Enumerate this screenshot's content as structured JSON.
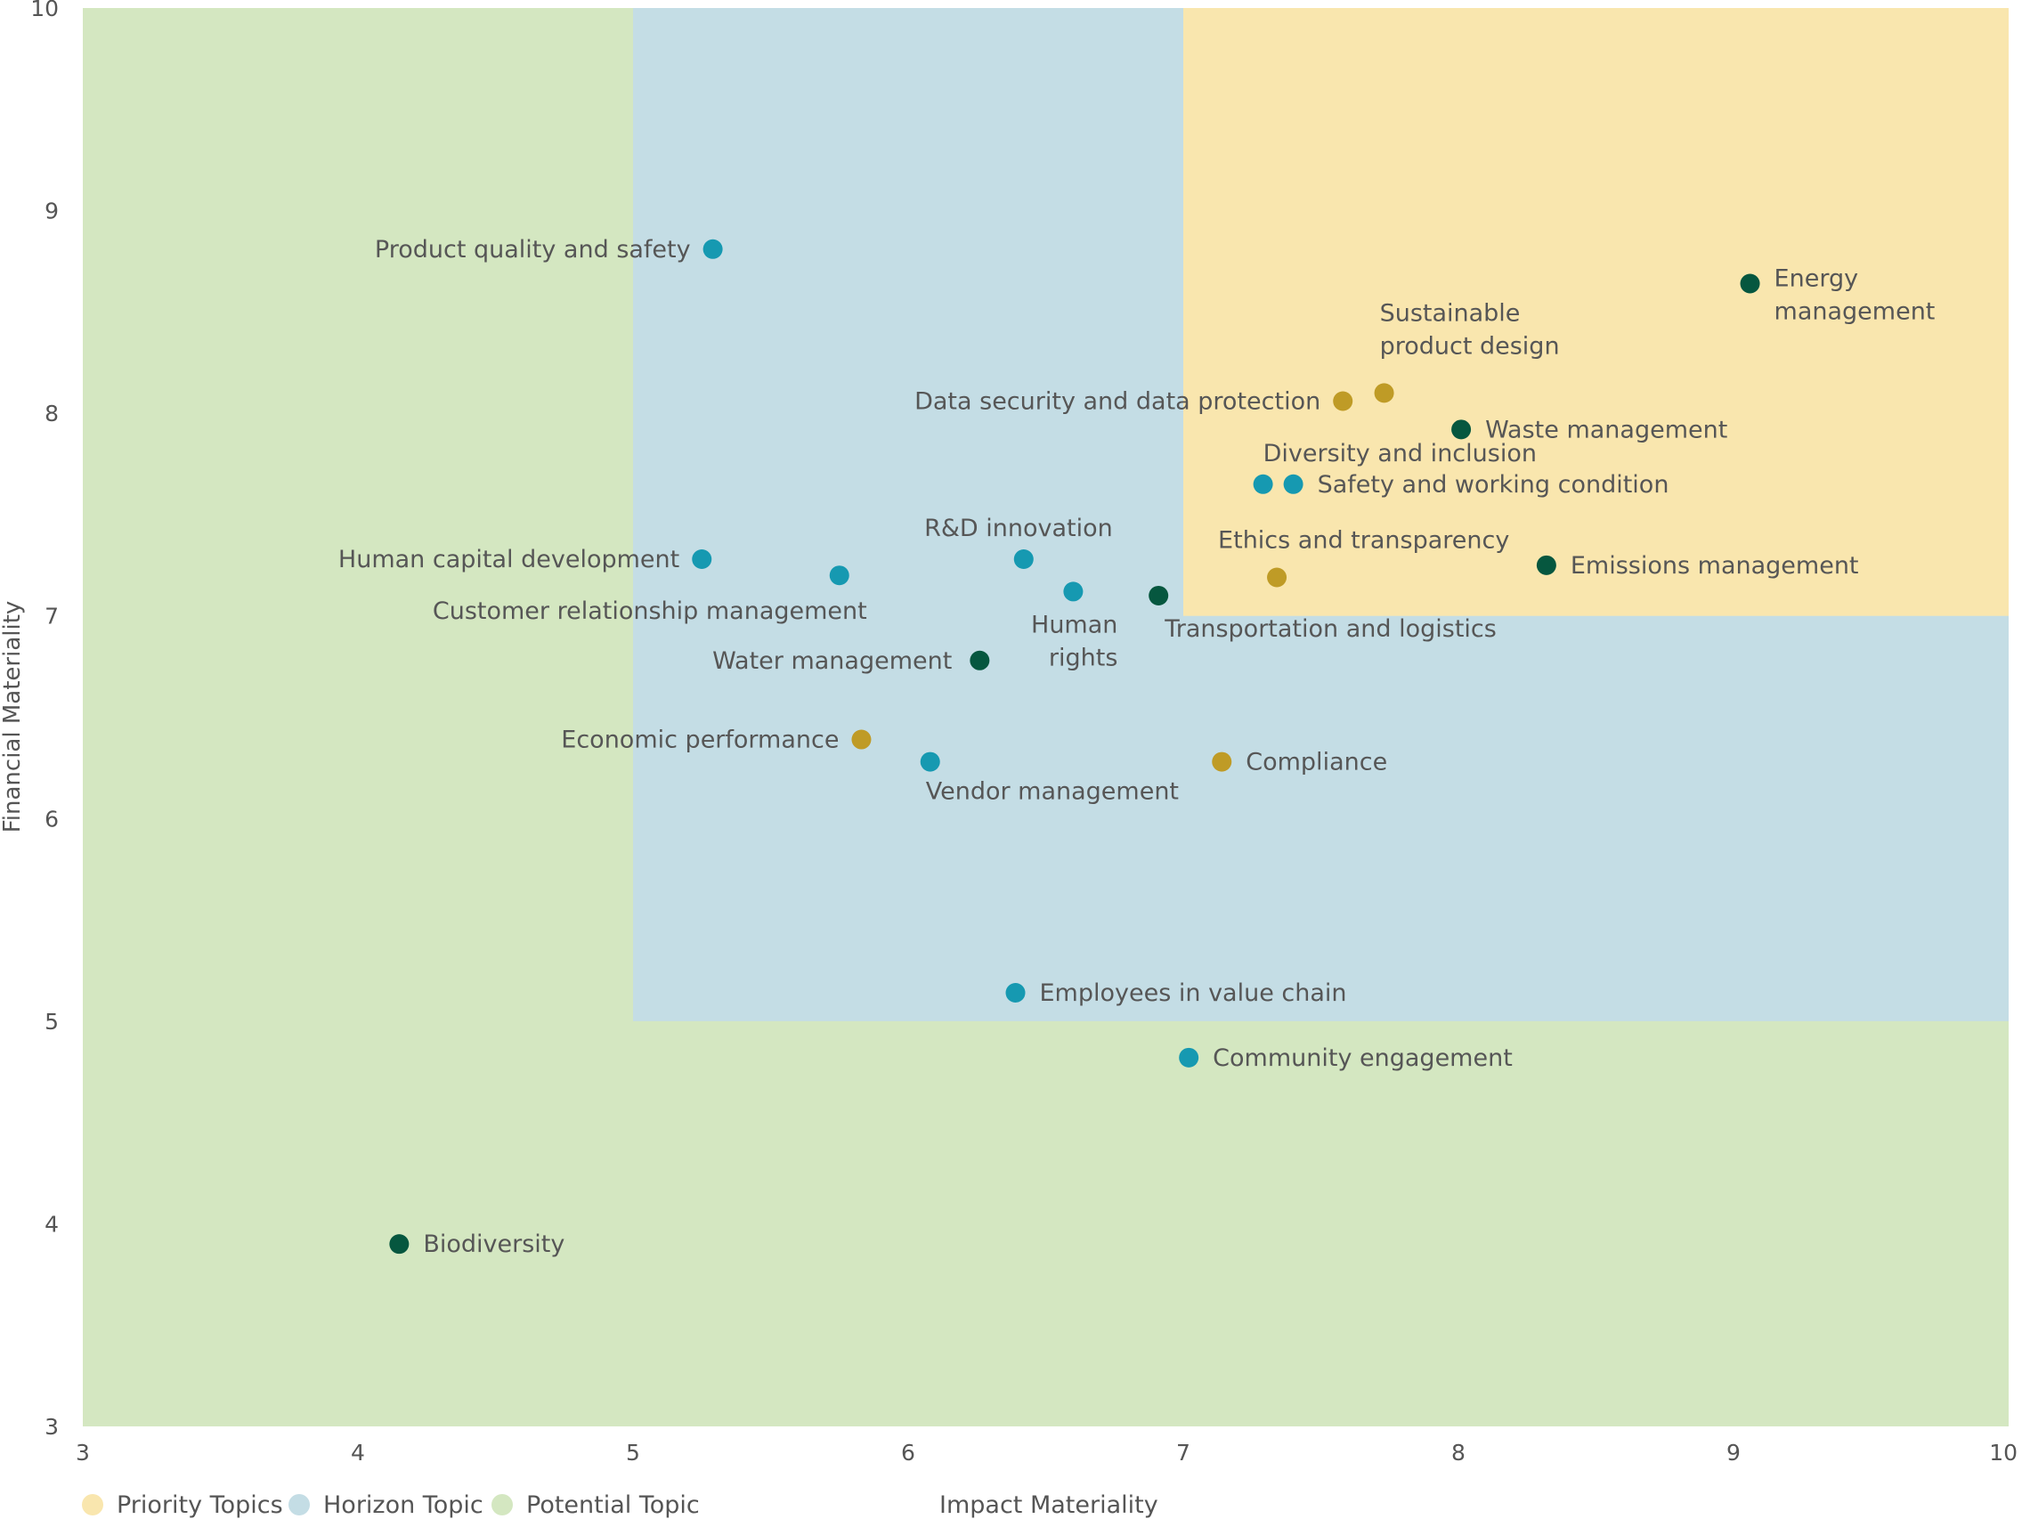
{
  "chart_data": {
    "type": "scatter",
    "xlabel": "Impact Materiality",
    "ylabel": "Financial Materiality",
    "xlim": [
      3,
      10
    ],
    "ylim": [
      3,
      10
    ],
    "xticks": [
      "3",
      "4",
      "5",
      "6",
      "7",
      "8",
      "9",
      "10"
    ],
    "yticks": [
      "3",
      "4",
      "5",
      "6",
      "7",
      "8",
      "9",
      "10"
    ],
    "grid": false,
    "legend_position": "bottom-left",
    "regions": [
      {
        "name": "Potential Topic",
        "x": [
          3,
          10
        ],
        "y": [
          3,
          10
        ],
        "color": "#d4e7c1"
      },
      {
        "name": "Horizon Topic",
        "x": [
          5,
          10
        ],
        "y": [
          5,
          10
        ],
        "color": "#c4dde5"
      },
      {
        "name": "Priority Topics",
        "x": [
          7,
          10
        ],
        "y": [
          7,
          10
        ],
        "color": "#f9e6ae"
      }
    ],
    "legend": [
      {
        "label": "Priority Topics",
        "color": "#f9e6ae"
      },
      {
        "label": "Horizon Topic",
        "color": "#c4dde5"
      },
      {
        "label": "Potential Topic",
        "color": "#d4e7c1"
      }
    ],
    "category_colors": {
      "environment": "#06573f",
      "social": "#1699b1",
      "governance": "#bf9b26"
    },
    "points": [
      {
        "label": [
          "Energy",
          "management"
        ],
        "x": 9.06,
        "y": 8.64,
        "group": "environment"
      },
      {
        "label": [
          "Sustainable",
          "product design"
        ],
        "x": 7.73,
        "y": 8.1,
        "group": "governance"
      },
      {
        "label": [
          "Data security and data protection"
        ],
        "x": 7.58,
        "y": 8.06,
        "group": "governance"
      },
      {
        "label": [
          "Waste management"
        ],
        "x": 8.01,
        "y": 7.92,
        "group": "environment"
      },
      {
        "label": [
          "Diversity and inclusion"
        ],
        "x": 7.29,
        "y": 7.65,
        "group": "social"
      },
      {
        "label": [
          "Safety and working condition"
        ],
        "x": 7.4,
        "y": 7.65,
        "group": "social"
      },
      {
        "label": [
          "Ethics and transparency"
        ],
        "x": 7.34,
        "y": 7.19,
        "group": "governance"
      },
      {
        "label": [
          "Emissions management"
        ],
        "x": 8.32,
        "y": 7.25,
        "group": "environment"
      },
      {
        "label": [
          "Product quality and safety"
        ],
        "x": 5.29,
        "y": 8.81,
        "group": "social"
      },
      {
        "label": [
          "Human capital development"
        ],
        "x": 5.25,
        "y": 7.28,
        "group": "social"
      },
      {
        "label": [
          "Customer relationship management"
        ],
        "x": 5.75,
        "y": 7.2,
        "group": "social"
      },
      {
        "label": [
          "R&D innovation"
        ],
        "x": 6.42,
        "y": 7.28,
        "group": "social"
      },
      {
        "label": [
          "Human",
          "rights"
        ],
        "x": 6.6,
        "y": 7.12,
        "group": "social"
      },
      {
        "label": [
          "Transportation and logistics"
        ],
        "x": 6.91,
        "y": 7.1,
        "group": "environment"
      },
      {
        "label": [
          "Water management"
        ],
        "x": 6.26,
        "y": 6.78,
        "group": "environment"
      },
      {
        "label": [
          "Economic performance"
        ],
        "x": 5.83,
        "y": 6.39,
        "group": "governance"
      },
      {
        "label": [
          "Vendor management"
        ],
        "x": 6.08,
        "y": 6.28,
        "group": "social"
      },
      {
        "label": [
          "Compliance"
        ],
        "x": 7.14,
        "y": 6.28,
        "group": "governance"
      },
      {
        "label": [
          "Employees in value chain"
        ],
        "x": 6.39,
        "y": 5.14,
        "group": "social"
      },
      {
        "label": [
          "Community engagement"
        ],
        "x": 7.02,
        "y": 4.82,
        "group": "social"
      },
      {
        "label": [
          "Biodiversity"
        ],
        "x": 4.15,
        "y": 3.9,
        "group": "environment"
      }
    ]
  }
}
